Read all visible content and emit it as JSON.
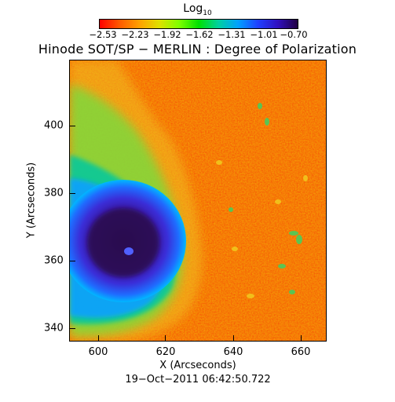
{
  "colorbar": {
    "title_main": "Log",
    "title_sub": "10",
    "ticks": [
      "−2.53",
      "−2.23",
      "−1.92",
      "−1.62",
      "−1.31",
      "−1.01",
      "−0.70"
    ],
    "scheme": [
      "#ff0000",
      "#ff5a00",
      "#ffa000",
      "#e0e000",
      "#80ff00",
      "#00e000",
      "#00d0a0",
      "#00a0ff",
      "#2040ff",
      "#3010c0",
      "#200040"
    ]
  },
  "title": "Hinode SOT/SP − MERLIN : Degree of Polarization",
  "x_axis": {
    "label": "X (Arcseconds)",
    "ticks": [
      "600",
      "620",
      "640",
      "660"
    ]
  },
  "y_axis": {
    "label": "Y (Arcseconds)",
    "ticks": [
      "400",
      "380",
      "360",
      "340"
    ]
  },
  "timestamp": "19−Oct−2011 06:42:50.722"
}
